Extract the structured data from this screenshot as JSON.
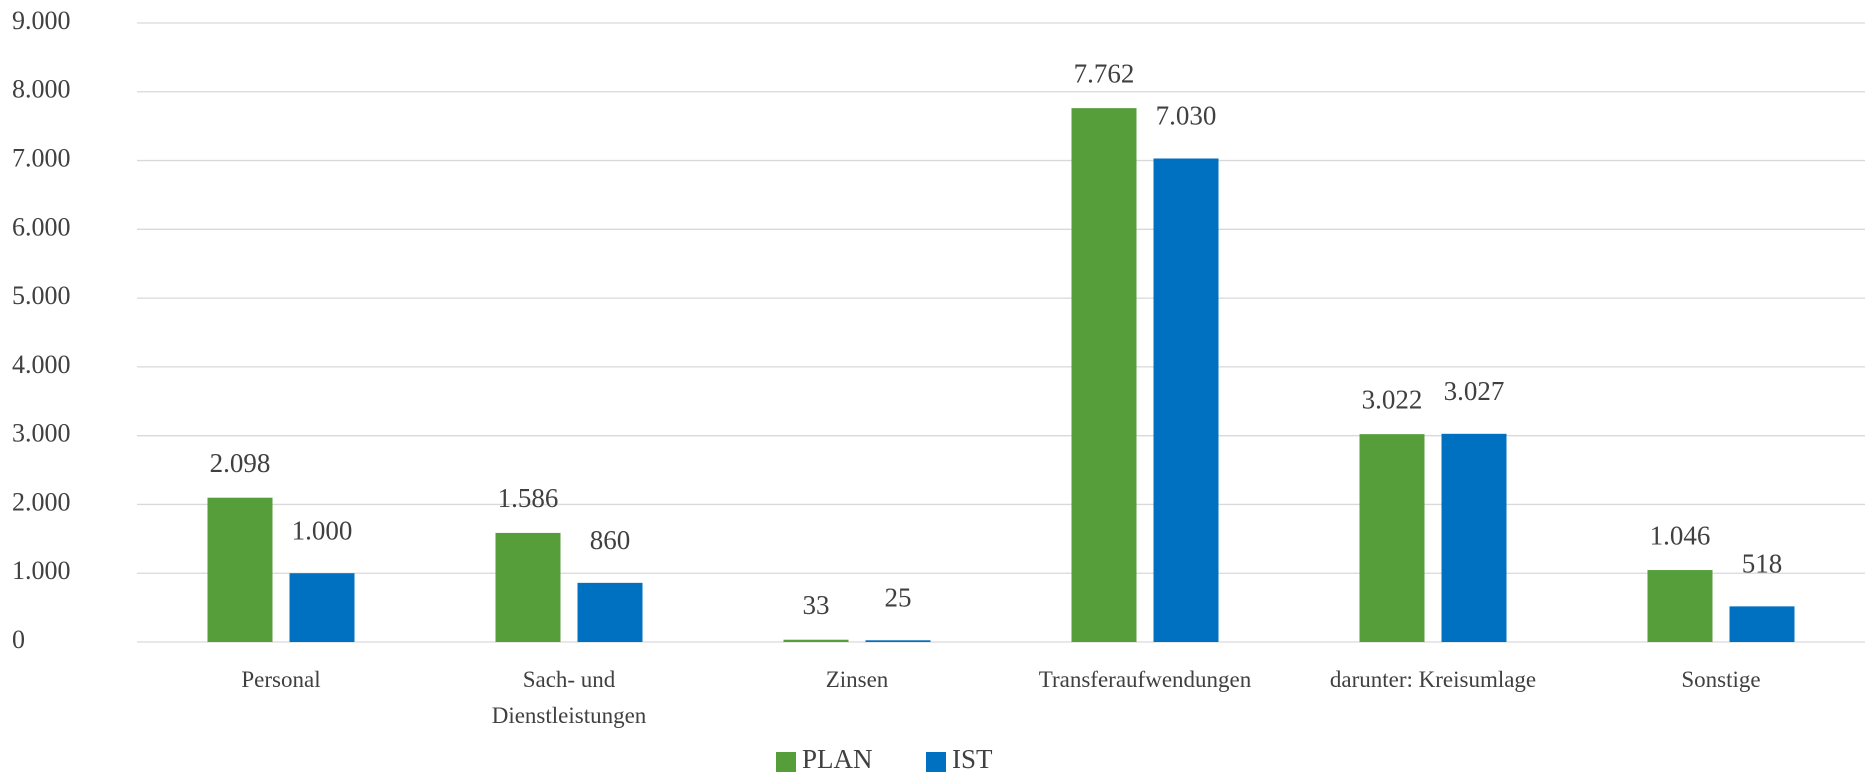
{
  "chart_data": {
    "type": "bar",
    "categories": [
      "Personal",
      "Sach- und\nDienstleistungen",
      "Zinsen",
      "Transferaufwendungen",
      "darunter: Kreisumlage",
      "Sonstige"
    ],
    "series": [
      {
        "name": "PLAN",
        "color": "#559e3a",
        "values": [
          2098,
          1586,
          33,
          7762,
          3022,
          1046
        ],
        "value_labels": [
          "2.098",
          "1.586",
          "33",
          "7.762",
          "3.022",
          "1.046"
        ]
      },
      {
        "name": "IST",
        "color": "#0070c0",
        "values": [
          1000,
          860,
          25,
          7030,
          3027,
          518
        ],
        "value_labels": [
          "1.000",
          "860",
          "25",
          "7.030",
          "3.027",
          "518"
        ]
      }
    ],
    "ylim": [
      0,
      9000
    ],
    "yticks": [
      0,
      {
        "value": 1000,
        "label": "1.000"
      },
      {
        "value": 2000,
        "label": "2.000"
      },
      {
        "value": 3000,
        "label": "3.000"
      },
      {
        "value": 4000,
        "label": "4.000"
      },
      {
        "value": 5000,
        "label": "5.000"
      },
      {
        "value": 6000,
        "label": "6.000"
      },
      {
        "value": 7000,
        "label": "7.000"
      },
      {
        "value": 8000,
        "label": "8.000"
      },
      {
        "value": 9000,
        "label": "9.000"
      }
    ],
    "grid": true,
    "legend": "bottom"
  }
}
